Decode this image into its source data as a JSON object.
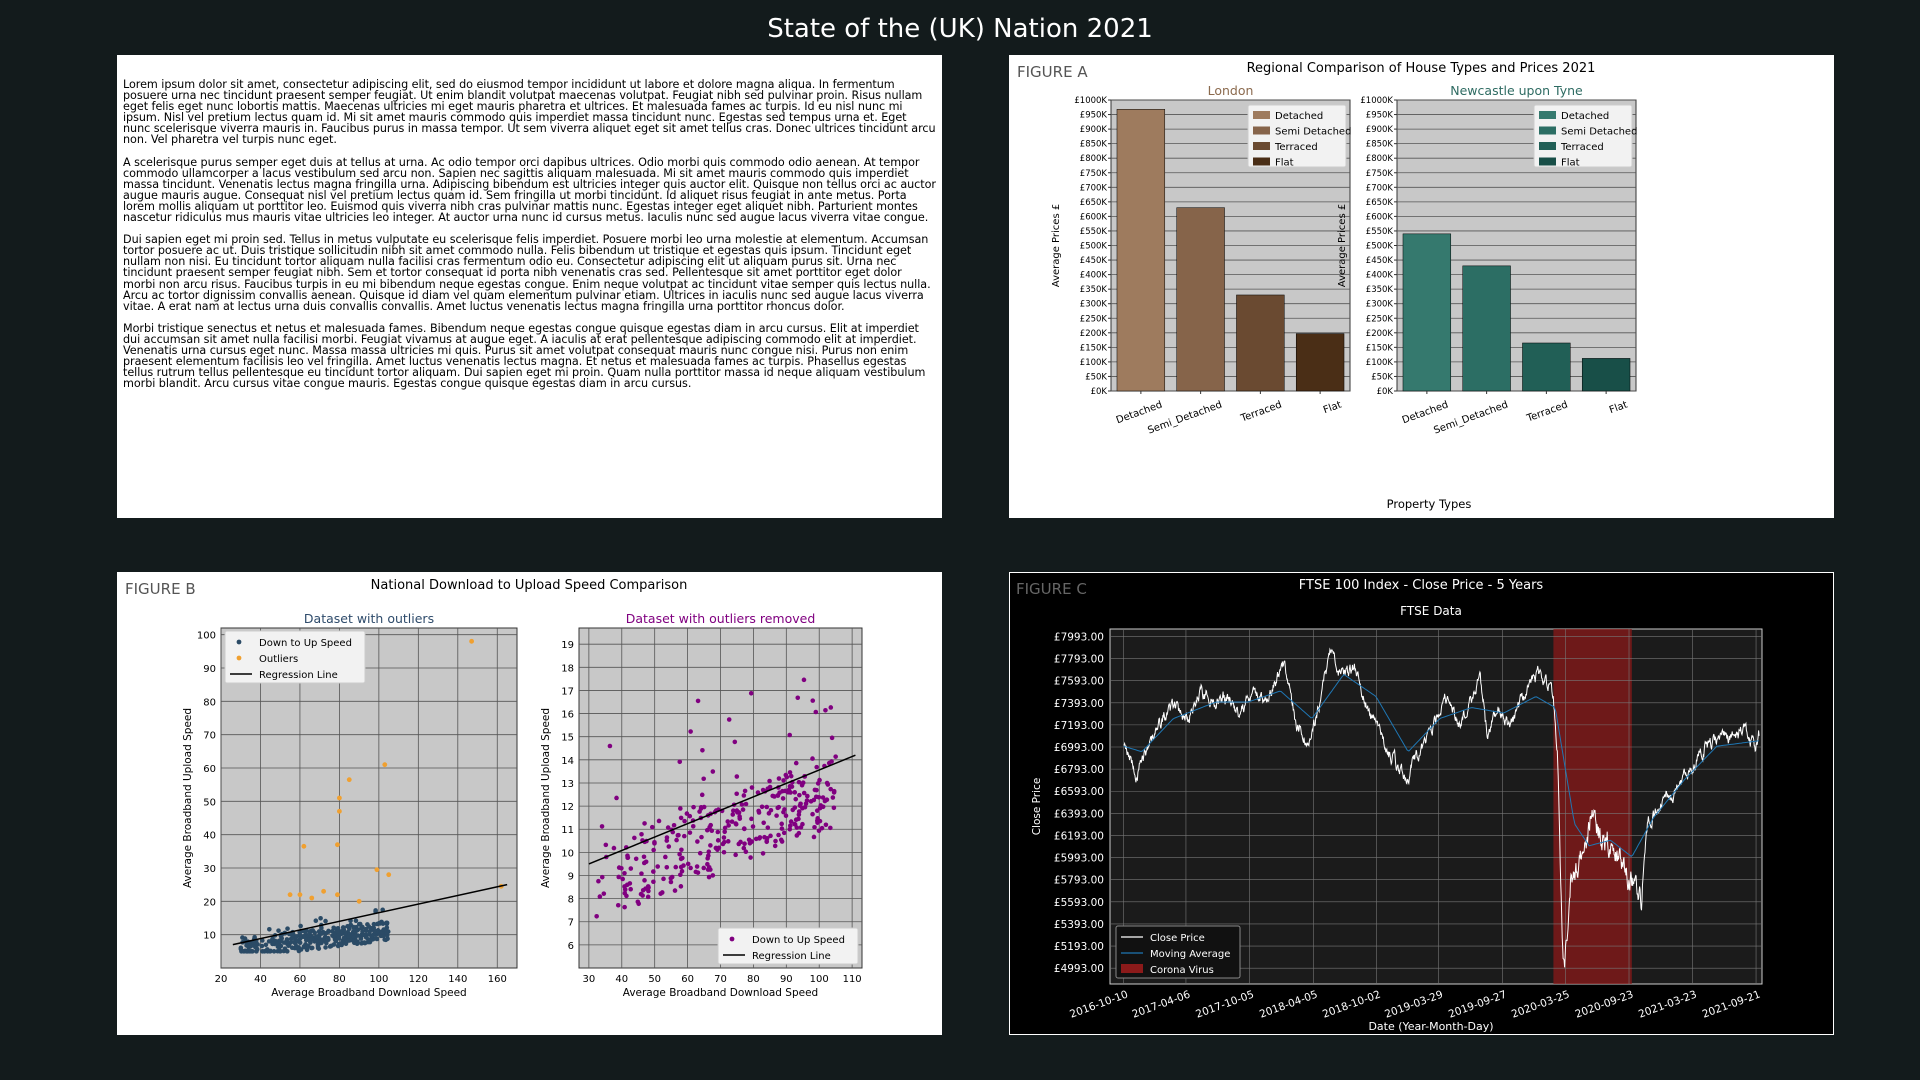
{
  "page_title": "State of the (UK) Nation 2021",
  "text_paragraphs": [
    "Lorem ipsum dolor sit amet, consectetur adipiscing elit, sed do eiusmod tempor incididunt ut labore et dolore magna aliqua. In fermentum posuere urna nec tincidunt praesent semper feugiat. Ut enim blandit volutpat maecenas volutpat. Feugiat nibh sed pulvinar proin. Risus nullam eget felis eget nunc lobortis mattis. Maecenas ultricies mi eget mauris pharetra et ultrices. Et malesuada fames ac turpis. Id eu nisl nunc mi ipsum. Nisl vel pretium lectus quam id. Mi sit amet mauris commodo quis imperdiet massa tincidunt nunc. Egestas sed tempus urna et. Eget nunc scelerisque viverra mauris in. Faucibus purus in massa tempor. Ut sem viverra aliquet eget sit amet tellus cras. Donec ultrices tincidunt arcu non. Vel pharetra vel turpis nunc eget.",
    "A scelerisque purus semper eget duis at tellus at urna. Ac odio tempor orci dapibus ultrices. Odio morbi quis commodo odio aenean. At tempor commodo ullamcorper a lacus vestibulum sed arcu non. Sapien nec sagittis aliquam malesuada. Mi sit amet mauris commodo quis imperdiet massa tincidunt. Venenatis lectus magna fringilla urna. Adipiscing bibendum est ultricies integer quis auctor elit. Quisque non tellus orci ac auctor augue mauris augue. Consequat nisl vel pretium lectus quam id. Sem fringilla ut morbi tincidunt. Id aliquet risus feugiat in ante metus. Porta lorem mollis aliquam ut porttitor leo. Euismod quis viverra nibh cras pulvinar mattis nunc. Egestas integer eget aliquet nibh. Parturient montes nascetur ridiculus mus mauris vitae ultricies leo integer. At auctor urna nunc id cursus metus. Iaculis nunc sed augue lacus viverra vitae congue.",
    "Dui sapien eget mi proin sed. Tellus in metus vulputate eu scelerisque felis imperdiet. Posuere morbi leo urna molestie at elementum. Accumsan tortor posuere ac ut. Duis tristique sollicitudin nibh sit amet commodo nulla. Felis bibendum ut tristique et egestas quis ipsum. Tincidunt eget nullam non nisi. Eu tincidunt tortor aliquam nulla facilisi cras fermentum odio eu. Consectetur adipiscing elit ut aliquam purus sit. Urna nec tincidunt praesent semper feugiat nibh. Sem et tortor consequat id porta nibh venenatis cras sed. Pellentesque sit amet porttitor eget dolor morbi non arcu risus. Faucibus turpis in eu mi bibendum neque egestas congue. Enim neque volutpat ac tincidunt vitae semper quis lectus nulla. Arcu ac tortor dignissim convallis aenean. Quisque id diam vel quam elementum pulvinar etiam. Ultrices in iaculis nunc sed augue lacus viverra vitae. A erat nam at lectus urna duis convallis convallis. Amet luctus venenatis lectus magna fringilla urna porttitor rhoncus dolor.",
    "Morbi tristique senectus et netus et malesuada fames. Bibendum neque egestas congue quisque egestas diam in arcu cursus. Elit at imperdiet dui accumsan sit amet nulla facilisi morbi. Feugiat vivamus at augue eget. A iaculis at erat pellentesque adipiscing commodo elit at imperdiet. Venenatis urna cursus eget nunc. Massa massa ultricies mi quis. Purus sit amet volutpat consequat mauris nunc congue nisi. Purus non enim praesent elementum facilisis leo vel fringilla. Amet luctus venenatis lectus magna. Et netus et malesuada fames ac turpis. Phasellus egestas tellus rutrum tellus pellentesque eu tincidunt tortor aliquam. Dui sapien eget mi proin. Quam nulla porttitor massa id neque aliquam vestibulum morbi blandit. Arcu cursus vitae congue mauris. Egestas congue quisque egestas diam in arcu cursus."
  ],
  "chart_data": [
    {
      "id": "figure_a",
      "type": "bar",
      "figure_label": "FIGURE A",
      "title": "Regional Comparison of House Types and Prices 2021",
      "xlabel": "Property Types",
      "ylabel": "Average Prices £",
      "ylim": [
        0,
        1000000
      ],
      "y_ticks": [
        "£0K",
        "£50K",
        "£100K",
        "£150K",
        "£200K",
        "£250K",
        "£300K",
        "£350K",
        "£400K",
        "£450K",
        "£500K",
        "£550K",
        "£600K",
        "£650K",
        "£700K",
        "£750K",
        "£800K",
        "£850K",
        "£900K",
        "£950K",
        "£1000K"
      ],
      "categories": [
        "Detached",
        "Semi_Detached",
        "Terraced",
        "Flat"
      ],
      "legend_labels": [
        "Detached",
        "Semi Detached",
        "Terraced",
        "Flat"
      ],
      "legend_position": "upper-right",
      "grid": true,
      "subplots": [
        {
          "name": "London",
          "title_color": "#8b6a4e",
          "values": [
            968000,
            630000,
            330000,
            197000
          ],
          "colors": [
            "#9e7b5e",
            "#86644a",
            "#6a4a31",
            "#4a2e16"
          ]
        },
        {
          "name": "Newcastle upon Tyne",
          "title_color": "#2e6b62",
          "values": [
            540000,
            430000,
            165000,
            112000
          ],
          "colors": [
            "#35796e",
            "#2c6e64",
            "#215f56",
            "#184f48"
          ]
        }
      ]
    },
    {
      "id": "figure_b",
      "type": "scatter",
      "figure_label": "FIGURE B",
      "title": "National Download to Upload Speed Comparison",
      "xlabel": "Average Broadband Download Speed",
      "ylabel": "Average Broadband Upload Speed",
      "grid": true,
      "subplots": [
        {
          "name": "Dataset with outliers",
          "title_color": "#2e4b6b",
          "xlim": [
            20,
            170
          ],
          "ylim": [
            0,
            102
          ],
          "x_ticks": [
            20,
            40,
            60,
            80,
            100,
            120,
            140,
            160
          ],
          "y_ticks": [
            10,
            20,
            30,
            40,
            50,
            60,
            70,
            80,
            90,
            100
          ],
          "legend_position": "upper-left",
          "series": [
            {
              "name": "Down to Up Speed",
              "kind": "points",
              "color": "#2b4b66",
              "count": 340,
              "x_range": [
                30,
                105
              ],
              "y_range": [
                5,
                22
              ]
            },
            {
              "name": "Outliers",
              "kind": "points",
              "color": "#f0a030",
              "points": [
                [
                  147,
                  98
                ],
                [
                  103,
                  61
                ],
                [
                  85,
                  56.5
                ],
                [
                  80,
                  51
                ],
                [
                  80,
                  47
                ],
                [
                  62,
                  36.5
                ],
                [
                  79,
                  37
                ],
                [
                  99,
                  29.5
                ],
                [
                  105,
                  28
                ],
                [
                  72,
                  23
                ],
                [
                  55,
                  22
                ],
                [
                  60,
                  22
                ],
                [
                  79,
                  22
                ],
                [
                  66,
                  21
                ],
                [
                  90,
                  20
                ],
                [
                  162,
                  24.5
                ]
              ]
            },
            {
              "name": "Regression Line",
              "kind": "line",
              "color": "#000000",
              "points": [
                [
                  26,
                  7
                ],
                [
                  165,
                  25
                ]
              ]
            }
          ]
        },
        {
          "name": "Dataset with outliers removed",
          "title_color": "#800080",
          "xlim": [
            27,
            113
          ],
          "ylim": [
            5,
            19.7
          ],
          "x_ticks": [
            30,
            40,
            50,
            60,
            70,
            80,
            90,
            100,
            110
          ],
          "y_ticks": [
            6,
            7,
            8,
            9,
            10,
            11,
            12,
            13,
            14,
            15,
            16,
            17,
            18,
            19
          ],
          "legend_position": "lower-right",
          "series": [
            {
              "name": "Down to Up Speed",
              "kind": "points",
              "color": "#800080",
              "count": 330,
              "x_range": [
                30,
                105
              ],
              "y_range": [
                5.3,
                19.2
              ]
            },
            {
              "name": "Regression Line",
              "kind": "line",
              "color": "#000000",
              "points": [
                [
                  30,
                  9.5
                ],
                [
                  111,
                  14.2
                ]
              ]
            }
          ]
        }
      ]
    },
    {
      "id": "figure_c",
      "type": "line",
      "figure_label": "FIGURE C",
      "title": "FTSE 100 Index - Close Price - 5 Years",
      "subtitle": "FTSE Data",
      "xlabel": "Date (Year-Month-Day)",
      "ylabel": "Close Price",
      "ylim": [
        4850,
        8060
      ],
      "y_ticks": [
        "£4993.00",
        "£5193.00",
        "£5393.00",
        "£5593.00",
        "£5793.00",
        "£5993.00",
        "£6193.00",
        "£6393.00",
        "£6593.00",
        "£6793.00",
        "£6993.00",
        "£7193.00",
        "£7393.00",
        "£7593.00",
        "£7793.00",
        "£7993.00"
      ],
      "x_ticks": [
        "2016-10-10",
        "2017-04-06",
        "2017-10-05",
        "2018-04-05",
        "2018-10-02",
        "2019-03-29",
        "2019-09-27",
        "2020-03-25",
        "2020-09-23",
        "2021-03-23",
        "2021-09-21"
      ],
      "x_range": [
        "2016-09-01",
        "2021-10-08"
      ],
      "highlight": {
        "label": "Corona Virus",
        "start": "2020-02-20",
        "end": "2020-10-01",
        "color": "#8b1a1a"
      },
      "legend": [
        "Close Price",
        "Moving Average",
        "Corona Virus"
      ],
      "legend_position": "lower-left",
      "grid": true,
      "series": [
        {
          "name": "Close Price",
          "color": "#ffffff",
          "keypoints": [
            [
              "2016-10-10",
              7000
            ],
            [
              "2016-11-15",
              6750
            ],
            [
              "2016-12-20",
              7000
            ],
            [
              "2017-01-20",
              7200
            ],
            [
              "2017-03-01",
              7350
            ],
            [
              "2017-04-15",
              7250
            ],
            [
              "2017-05-20",
              7500
            ],
            [
              "2017-06-20",
              7400
            ],
            [
              "2017-08-01",
              7450
            ],
            [
              "2017-09-10",
              7300
            ],
            [
              "2017-10-20",
              7500
            ],
            [
              "2017-11-20",
              7400
            ],
            [
              "2017-12-29",
              7680
            ],
            [
              "2018-01-12",
              7750
            ],
            [
              "2018-02-15",
              7200
            ],
            [
              "2018-03-23",
              7000
            ],
            [
              "2018-04-20",
              7350
            ],
            [
              "2018-05-22",
              7850
            ],
            [
              "2018-06-25",
              7650
            ],
            [
              "2018-08-03",
              7700
            ],
            [
              "2018-09-10",
              7300
            ],
            [
              "2018-10-26",
              7000
            ],
            [
              "2018-12-27",
              6700
            ],
            [
              "2019-01-25",
              6900
            ],
            [
              "2019-03-01",
              7100
            ],
            [
              "2019-04-20",
              7450
            ],
            [
              "2019-05-31",
              7200
            ],
            [
              "2019-07-25",
              7650
            ],
            [
              "2019-08-15",
              7100
            ],
            [
              "2019-09-20",
              7350
            ],
            [
              "2019-10-20",
              7150
            ],
            [
              "2019-11-20",
              7400
            ],
            [
              "2019-12-27",
              7650
            ],
            [
              "2020-01-17",
              7650
            ],
            [
              "2020-02-20",
              7450
            ],
            [
              "2020-03-05",
              6700
            ],
            [
              "2020-03-16",
              5300
            ],
            [
              "2020-03-23",
              5000
            ],
            [
              "2020-04-10",
              5850
            ],
            [
              "2020-05-15",
              5950
            ],
            [
              "2020-06-08",
              6400
            ],
            [
              "2020-07-01",
              6200
            ],
            [
              "2020-08-15",
              6000
            ],
            [
              "2020-09-20",
              5850
            ],
            [
              "2020-10-28",
              5600
            ],
            [
              "2020-11-15",
              6300
            ],
            [
              "2020-12-30",
              6500
            ],
            [
              "2021-02-01",
              6600
            ],
            [
              "2021-03-10",
              6750
            ],
            [
              "2021-04-20",
              6950
            ],
            [
              "2021-05-25",
              7050
            ],
            [
              "2021-06-20",
              7100
            ],
            [
              "2021-07-20",
              7050
            ],
            [
              "2021-08-20",
              7150
            ],
            [
              "2021-09-20",
              7000
            ],
            [
              "2021-10-01",
              7100
            ]
          ]
        },
        {
          "name": "Moving Average",
          "color": "#1f77b4",
          "keypoints": [
            [
              "2016-10-10",
              7000
            ],
            [
              "2016-12-01",
              6950
            ],
            [
              "2017-03-01",
              7250
            ],
            [
              "2017-07-01",
              7400
            ],
            [
              "2017-10-01",
              7400
            ],
            [
              "2018-01-01",
              7500
            ],
            [
              "2018-04-01",
              7250
            ],
            [
              "2018-07-01",
              7650
            ],
            [
              "2018-10-01",
              7450
            ],
            [
              "2019-01-01",
              6950
            ],
            [
              "2019-04-01",
              7250
            ],
            [
              "2019-07-01",
              7350
            ],
            [
              "2019-10-01",
              7300
            ],
            [
              "2020-01-01",
              7450
            ],
            [
              "2020-02-25",
              7350
            ],
            [
              "2020-04-20",
              6300
            ],
            [
              "2020-06-01",
              6100
            ],
            [
              "2020-08-01",
              6150
            ],
            [
              "2020-10-01",
              6000
            ],
            [
              "2020-12-01",
              6350
            ],
            [
              "2021-03-01",
              6700
            ],
            [
              "2021-06-01",
              7000
            ],
            [
              "2021-10-01",
              7050
            ]
          ]
        }
      ]
    }
  ]
}
